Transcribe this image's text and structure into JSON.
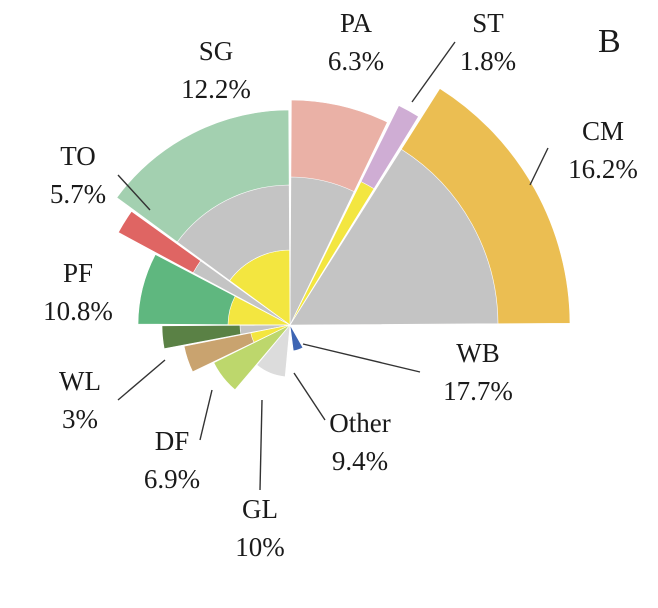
{
  "chart_data": {
    "type": "pie",
    "panel_label": "B",
    "title": "",
    "variant": "polar-area (rose) with inner rings",
    "slices": [
      {
        "name": "CM",
        "value": 16.2,
        "label": "16.2%",
        "color": "#ebbe52",
        "inner_colors": [
          "#c4c4c4"
        ]
      },
      {
        "name": "ST",
        "value": 1.8,
        "label": "1.8%",
        "color": "#cfadd4",
        "inner_colors": [
          "#f3e640"
        ]
      },
      {
        "name": "PA",
        "value": 6.3,
        "label": "6.3%",
        "color": "#eab1a6",
        "inner_colors": [
          "#c4c4c4"
        ]
      },
      {
        "name": "SG",
        "value": 12.2,
        "label": "12.2%",
        "color": "#a3d0b0",
        "inner_colors": [
          "#f3e640",
          "#c4c4c4"
        ]
      },
      {
        "name": "TO",
        "value": 5.7,
        "label": "5.7%",
        "color": "#df6563",
        "inner_colors": [
          "#c4c4c4"
        ]
      },
      {
        "name": "PF",
        "value": 10.8,
        "label": "10.8%",
        "color": "#5fb77f",
        "inner_colors": [
          "#f3e640"
        ]
      },
      {
        "name": "WL",
        "value": 3,
        "label": "3%",
        "color": "#5a8145",
        "inner_colors": [
          "#c4c4c4"
        ]
      },
      {
        "name": "DF",
        "value": 6.9,
        "label": "6.9%",
        "color": "#c9a36f",
        "inner_colors": [
          "#f3e640"
        ]
      },
      {
        "name": "GL",
        "value": 10,
        "label": "10%",
        "color": "#bdd76c",
        "inner_colors": []
      },
      {
        "name": "Other",
        "value": 9.4,
        "label": "9.4%",
        "color": "#dcdcdc",
        "inner_colors": []
      },
      {
        "name": "WB",
        "value": 17.7,
        "label": "17.7%",
        "color": "#3e65b3",
        "inner_colors": []
      }
    ],
    "legend": "none",
    "grid": false
  }
}
